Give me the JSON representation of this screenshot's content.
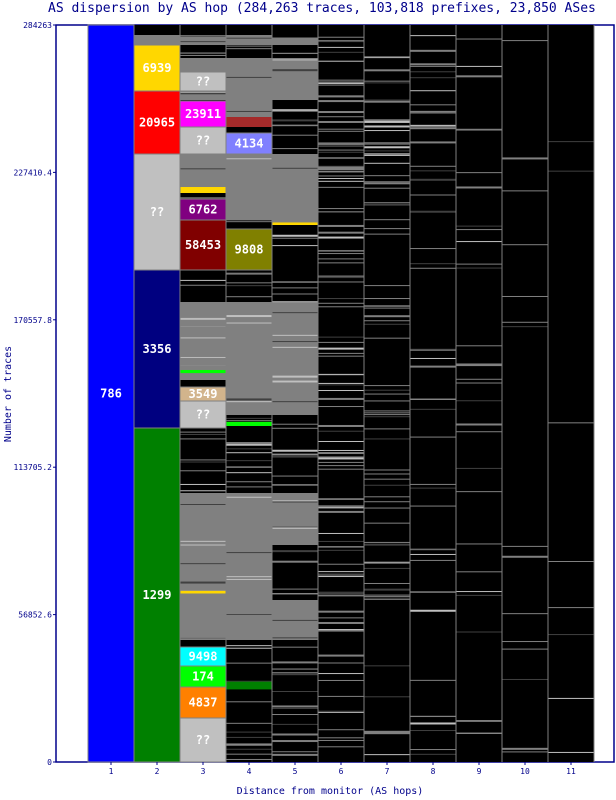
{
  "chart_data": {
    "type": "stacked-bar",
    "title": "AS dispersion by AS hop (284,263 traces, 103,818 prefixes, 23,850 ASes",
    "xlabel": "Distance from monitor (AS hops)",
    "ylabel": "Number of traces",
    "ylim": [
      0,
      284263
    ],
    "yticks": [
      "0",
      "56852.6",
      "113705.2",
      "170557.8",
      "227410.4",
      "284263"
    ],
    "xticks": [
      "1",
      "2",
      "3",
      "4",
      "5",
      "6",
      "7",
      "8",
      "9",
      "10",
      "11"
    ],
    "colors": {
      "background": "#000000",
      "filler": "#808080",
      "frame": "#00008b"
    },
    "labeled_blocks": [
      {
        "hop": 1,
        "label": "786",
        "from": 0,
        "to": 284263,
        "color": "#0000ff"
      },
      {
        "hop": 2,
        "label": "6939",
        "from": 258805,
        "to": 276547,
        "color": "#ffd700"
      },
      {
        "hop": 2,
        "label": "20965",
        "from": 234506,
        "to": 258805,
        "color": "#ff0000"
      },
      {
        "hop": 2,
        "label": "??",
        "from": 189764,
        "to": 234506,
        "color": "#c0c0c0"
      },
      {
        "hop": 2,
        "label": "3356",
        "from": 128824,
        "to": 189764,
        "color": "#000080"
      },
      {
        "hop": 2,
        "label": "1299",
        "from": 0,
        "to": 128824,
        "color": "#008000"
      },
      {
        "hop": 3,
        "label": "??",
        "from": 258805,
        "to": 266133,
        "color": "#c0c0c0"
      },
      {
        "hop": 3,
        "label": "23911",
        "from": 244920,
        "to": 254948,
        "color": "#ff00ff"
      },
      {
        "hop": 3,
        "label": "??",
        "from": 234506,
        "to": 244920,
        "color": "#c0c0c0"
      },
      {
        "hop": 3,
        "label": "6762",
        "from": 209049,
        "to": 217149,
        "color": "#800080"
      },
      {
        "hop": 3,
        "label": "58453",
        "from": 189764,
        "to": 209049,
        "color": "#800000"
      },
      {
        "hop": 3,
        "label": "3549",
        "from": 139238,
        "to": 144638,
        "color": "#d2b48c"
      },
      {
        "hop": 3,
        "label": "??",
        "from": 128824,
        "to": 139238,
        "color": "#c0c0c0"
      },
      {
        "hop": 3,
        "label": "9498",
        "from": 37027,
        "to": 44356,
        "color": "#00ffff"
      },
      {
        "hop": 3,
        "label": "174",
        "from": 28928,
        "to": 37027,
        "color": "#00ff00"
      },
      {
        "hop": 3,
        "label": "4837",
        "from": 16971,
        "to": 28928,
        "color": "#ff8000"
      },
      {
        "hop": 3,
        "label": "??",
        "from": 0,
        "to": 16971,
        "color": "#c0c0c0"
      },
      {
        "hop": 4,
        "label": "4134",
        "from": 234506,
        "to": 242605,
        "color": "#8080ff"
      },
      {
        "hop": 4,
        "label": "9808",
        "from": 189764,
        "to": 205578,
        "color": "#808000"
      }
    ],
    "small_blocks": [
      {
        "hop": 3,
        "from": 219463,
        "to": 221778,
        "color": "#ffd700"
      },
      {
        "hop": 4,
        "from": 244920,
        "to": 248777,
        "color": "#a52a2a"
      },
      {
        "hop": 3,
        "from": 150000,
        "to": 151200,
        "color": "#00ff00"
      },
      {
        "hop": 4,
        "from": 129600,
        "to": 131200,
        "color": "#00ff00"
      },
      {
        "hop": 3,
        "from": 65000,
        "to": 66000,
        "color": "#ffd700"
      },
      {
        "hop": 4,
        "from": 28000,
        "to": 31000,
        "color": "#008000"
      },
      {
        "hop": 5,
        "from": 207121,
        "to": 208100,
        "color": "#ffd700"
      }
    ],
    "filler_regions": [
      {
        "hop": 2,
        "from": 276547,
        "to": 280404
      },
      {
        "hop": 3,
        "from": 276547,
        "to": 280404
      },
      {
        "hop": 4,
        "from": 276547,
        "to": 280404
      },
      {
        "hop": 5,
        "from": 276547,
        "to": 279000
      },
      {
        "hop": 3,
        "from": 266133,
        "to": 271533
      },
      {
        "hop": 4,
        "from": 248777,
        "to": 271533
      },
      {
        "hop": 5,
        "from": 255333,
        "to": 271533
      },
      {
        "hop": 3,
        "from": 255333,
        "to": 258805
      },
      {
        "hop": 3,
        "from": 221778,
        "to": 234506
      },
      {
        "hop": 4,
        "from": 209049,
        "to": 234506
      },
      {
        "hop": 5,
        "from": 207121,
        "to": 234506
      },
      {
        "hop": 3,
        "from": 147337,
        "to": 177422
      },
      {
        "hop": 4,
        "from": 133838,
        "to": 177422
      },
      {
        "hop": 5,
        "from": 133838,
        "to": 177422
      },
      {
        "hop": 3,
        "from": 83697,
        "to": 103753
      },
      {
        "hop": 4,
        "from": 83697,
        "to": 103753
      },
      {
        "hop": 5,
        "from": 83697,
        "to": 103753
      },
      {
        "hop": 3,
        "from": 47055,
        "to": 83697
      },
      {
        "hop": 4,
        "from": 47055,
        "to": 83697
      },
      {
        "hop": 5,
        "from": 47055,
        "to": 62483
      }
    ]
  }
}
